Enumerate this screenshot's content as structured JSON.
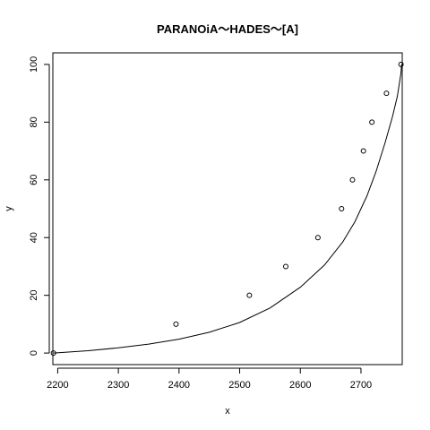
{
  "chart_data": {
    "type": "scatter",
    "title": "PARANOiA～HADES～[A]",
    "xlabel": "x",
    "ylabel": "y",
    "xlim": [
      2192,
      2768
    ],
    "ylim": [
      0,
      100
    ],
    "x_ticks": [
      "2200",
      "2300",
      "2400",
      "2500",
      "2600",
      "2700"
    ],
    "y_ticks": [
      "0",
      "20",
      "40",
      "60",
      "80",
      "100"
    ],
    "grid": false,
    "legend": "none",
    "points": [
      {
        "x": 2193,
        "y": 0
      },
      {
        "x": 2395,
        "y": 10
      },
      {
        "x": 2516,
        "y": 20
      },
      {
        "x": 2576,
        "y": 30
      },
      {
        "x": 2629,
        "y": 40
      },
      {
        "x": 2668,
        "y": 50
      },
      {
        "x": 2686,
        "y": 60
      },
      {
        "x": 2704,
        "y": 70
      },
      {
        "x": 2718,
        "y": 80
      },
      {
        "x": 2742,
        "y": 90
      },
      {
        "x": 2766,
        "y": 100
      }
    ],
    "fit_curve": [
      {
        "x": 2193,
        "y": 0
      },
      {
        "x": 2250,
        "y": 0.8
      },
      {
        "x": 2300,
        "y": 1.8
      },
      {
        "x": 2350,
        "y": 3.1
      },
      {
        "x": 2400,
        "y": 4.8
      },
      {
        "x": 2450,
        "y": 7.2
      },
      {
        "x": 2500,
        "y": 10.6
      },
      {
        "x": 2550,
        "y": 15.6
      },
      {
        "x": 2600,
        "y": 22.8
      },
      {
        "x": 2640,
        "y": 30.5
      },
      {
        "x": 2670,
        "y": 38.5
      },
      {
        "x": 2690,
        "y": 45.5
      },
      {
        "x": 2710,
        "y": 54.5
      },
      {
        "x": 2725,
        "y": 63
      },
      {
        "x": 2740,
        "y": 73
      },
      {
        "x": 2752,
        "y": 82
      },
      {
        "x": 2760,
        "y": 89
      },
      {
        "x": 2766,
        "y": 97
      },
      {
        "x": 2767,
        "y": 100
      }
    ]
  }
}
